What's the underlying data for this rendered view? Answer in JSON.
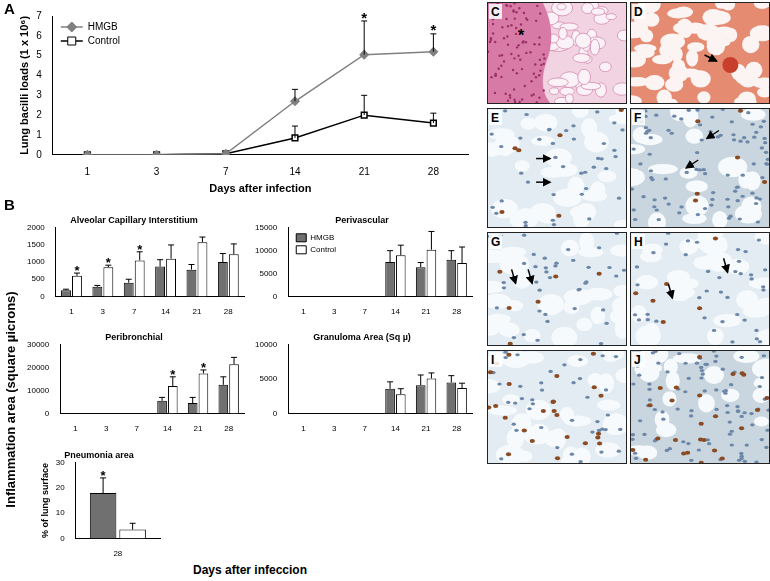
{
  "chart_data": [
    {
      "type": "line",
      "xlabel": "Days after infection",
      "ylabel": "Lung bacilli loads (1 x 10⁶)",
      "categories": [
        "1",
        "3",
        "7",
        "14",
        "21",
        "28"
      ],
      "ylim": [
        0,
        7
      ],
      "yticks": [
        0,
        1,
        2,
        3,
        4,
        5,
        6,
        7
      ],
      "grid": false,
      "legend": "upper left",
      "series": [
        {
          "name": "HMGB",
          "color": "#808080",
          "marker": "diamond",
          "values": [
            0,
            0,
            0.05,
            2.7,
            5.05,
            5.2
          ],
          "errors": [
            0,
            0,
            0,
            0.6,
            1.7,
            0.9
          ]
        },
        {
          "name": "Control",
          "color": "#000000",
          "marker": "square",
          "values": [
            0,
            0,
            0.05,
            0.85,
            2.0,
            1.6
          ],
          "errors": [
            0,
            0,
            0,
            0.6,
            1.0,
            0.5
          ]
        }
      ],
      "annotations": [
        {
          "series": "HMGB",
          "category": "21",
          "text": "*"
        },
        {
          "series": "HMGB",
          "category": "28",
          "text": "*"
        }
      ]
    },
    {
      "type": "bar",
      "title": "Alveolar Capillary Interstitium",
      "categories": [
        "1",
        "3",
        "7",
        "14",
        "21",
        "28"
      ],
      "ylim": [
        0,
        2000
      ],
      "yticks": [
        0,
        500,
        1000,
        1500,
        2000
      ],
      "grid": false,
      "series": [
        {
          "name": "HMGB",
          "color": "#707070",
          "values": [
            180,
            280,
            400,
            870,
            780,
            1000
          ],
          "errors": [
            30,
            40,
            100,
            200,
            150,
            250
          ]
        },
        {
          "name": "Control",
          "color": "#ffffff",
          "values": [
            600,
            850,
            1050,
            1100,
            1580,
            1230
          ],
          "errors": [
            80,
            60,
            250,
            400,
            150,
            300
          ]
        }
      ],
      "annotations": [
        {
          "series": "Control",
          "category": "1",
          "text": "*"
        },
        {
          "series": "Control",
          "category": "3",
          "text": "*"
        },
        {
          "series": "Control",
          "category": "7",
          "text": "*"
        }
      ]
    },
    {
      "type": "bar",
      "title": "Perivascular",
      "categories": [
        "1",
        "3",
        "7",
        "14",
        "21",
        "28"
      ],
      "ylim": [
        0,
        15000
      ],
      "yticks": [
        0,
        5000,
        10000,
        15000
      ],
      "grid": false,
      "legend": "upper left",
      "series": [
        {
          "name": "HMGB",
          "color": "#707070",
          "values": [
            0,
            0,
            0,
            7500,
            6400,
            8000
          ],
          "errors": [
            0,
            0,
            0,
            2500,
            1000,
            2000
          ]
        },
        {
          "name": "Control",
          "color": "#ffffff",
          "values": [
            0,
            0,
            0,
            9000,
            10200,
            7300
          ],
          "errors": [
            0,
            0,
            0,
            2200,
            4000,
            3500
          ]
        }
      ]
    },
    {
      "type": "bar",
      "title": "Peribronchial",
      "categories": [
        "1",
        "3",
        "7",
        "14",
        "21",
        "28"
      ],
      "ylim": [
        0,
        30000
      ],
      "yticks": [
        0,
        10000,
        20000,
        30000
      ],
      "grid": false,
      "series": [
        {
          "name": "HMGB",
          "color": "#707070",
          "values": [
            0,
            0,
            0,
            5500,
            4500,
            12500
          ],
          "errors": [
            0,
            0,
            0,
            1500,
            2500,
            3500
          ]
        },
        {
          "name": "Control",
          "color": "#ffffff",
          "values": [
            0,
            0,
            0,
            12000,
            17500,
            21500
          ],
          "errors": [
            0,
            0,
            0,
            4000,
            1500,
            3000
          ]
        }
      ],
      "annotations": [
        {
          "series": "Control",
          "category": "14",
          "text": "*"
        },
        {
          "series": "Control",
          "category": "21",
          "text": "*"
        }
      ]
    },
    {
      "type": "bar",
      "title": "Granuloma Area (Sq µ)",
      "categories": [
        "1",
        "3",
        "7",
        "14",
        "21",
        "28"
      ],
      "ylim": [
        0,
        10000
      ],
      "yticks": [
        0,
        5000,
        10000
      ],
      "grid": false,
      "series": [
        {
          "name": "HMGB",
          "color": "#707070",
          "values": [
            0,
            0,
            0,
            3600,
            4100,
            4500
          ],
          "errors": [
            0,
            0,
            0,
            1000,
            1500,
            1000
          ]
        },
        {
          "name": "Control",
          "color": "#ffffff",
          "values": [
            0,
            0,
            0,
            2800,
            5100,
            3700
          ],
          "errors": [
            0,
            0,
            0,
            800,
            800,
            700
          ]
        }
      ]
    },
    {
      "type": "bar",
      "title": "Pneumonia area",
      "ylabel": "% of lung surface",
      "categories": [
        "28"
      ],
      "ylim": [
        0,
        30
      ],
      "yticks": [
        0,
        10,
        20,
        30
      ],
      "grid": false,
      "series": [
        {
          "name": "HMGB",
          "color": "#707070",
          "values": [
            18
          ],
          "errors": [
            6
          ]
        },
        {
          "name": "Control",
          "color": "#ffffff",
          "values": [
            3.5
          ],
          "errors": [
            2.5
          ]
        }
      ],
      "annotations": [
        {
          "series": "HMGB",
          "category": "28",
          "text": "*"
        }
      ]
    }
  ],
  "figure": {
    "panel_labels": [
      "A",
      "B"
    ],
    "shared_ylabel": "Inflammation area  (square µicrons)",
    "shared_xlabel": "Days  after infeccion",
    "image_panels": [
      {
        "label": "C",
        "text": "*"
      },
      {
        "label": "D"
      },
      {
        "label": "E"
      },
      {
        "label": "F"
      },
      {
        "label": "G"
      },
      {
        "label": "H"
      },
      {
        "label": "I"
      },
      {
        "label": "J"
      }
    ]
  }
}
